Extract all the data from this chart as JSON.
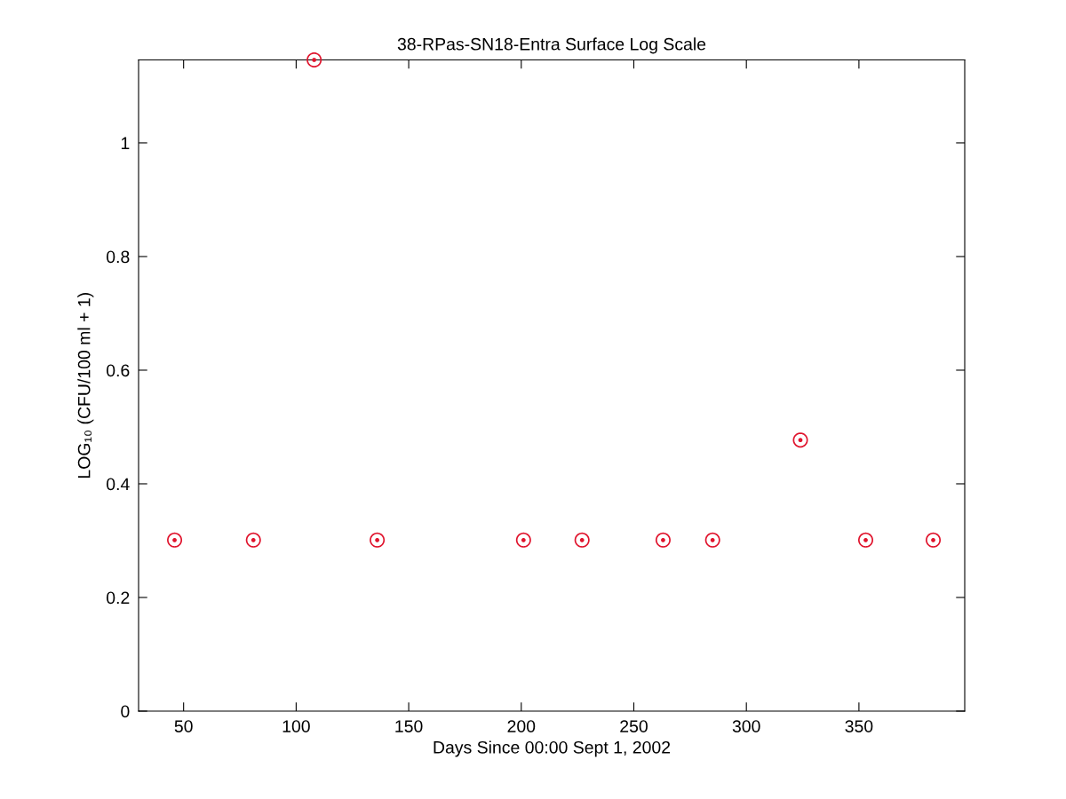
{
  "chart_data": {
    "type": "scatter",
    "title": "38-RPas-SN18-Entra Surface Log Scale",
    "xlabel": "Days Since 00:00 Sept 1, 2002",
    "ylabel": "LOG₁₀ (CFU/100 ml + 1)",
    "x": [
      46,
      81,
      108,
      136,
      201,
      227,
      263,
      285,
      324,
      353,
      383
    ],
    "values": [
      0.301,
      0.301,
      1.146,
      0.301,
      0.301,
      0.301,
      0.301,
      0.301,
      0.477,
      0.301,
      0.301
    ],
    "color": "#e0142d",
    "marker": "circle",
    "grid": false,
    "xlim": [
      30,
      397
    ],
    "ylim": [
      0,
      1.146
    ],
    "xticks": [
      50,
      100,
      150,
      200,
      250,
      300,
      350
    ],
    "yticks": [
      0,
      0.2,
      0.4,
      0.6,
      0.8,
      1
    ]
  }
}
